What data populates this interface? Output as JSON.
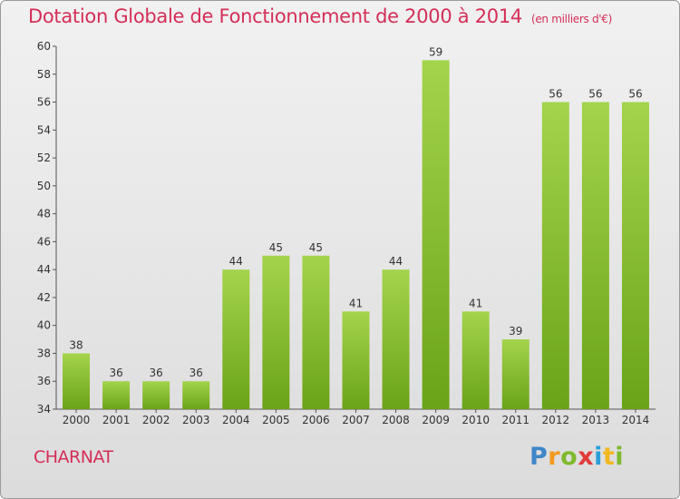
{
  "title": "Dotation Globale de Fonctionnement de 2000 à 2014",
  "subtitle": "(en milliers d'€)",
  "commune": "CHARNAT",
  "logo": {
    "letters": [
      "P",
      "r",
      "o",
      "x",
      "i",
      "t",
      "i"
    ],
    "colors": [
      "#3f86c8",
      "#f29a1f",
      "#7fba2e",
      "#e23b3b",
      "#2a9ed8",
      "#f2b81f",
      "#7fba2e"
    ]
  },
  "colors": {
    "title": "#d42e57",
    "bar_light": "#a3d44c",
    "bar_dark": "#6aa318"
  },
  "chart_data": {
    "type": "bar",
    "title": "Dotation Globale de Fonctionnement de 2000 à 2014",
    "subtitle": "(en milliers d'€)",
    "categories": [
      "2000",
      "2001",
      "2002",
      "2003",
      "2004",
      "2005",
      "2006",
      "2007",
      "2008",
      "2009",
      "2010",
      "2011",
      "2012",
      "2013",
      "2014"
    ],
    "values": [
      38,
      36,
      36,
      36,
      44,
      45,
      45,
      41,
      44,
      59,
      41,
      39,
      56,
      56,
      56
    ],
    "xlabel": "",
    "ylabel": "",
    "ylim": [
      34,
      60
    ],
    "yticks": [
      34,
      36,
      38,
      40,
      42,
      44,
      46,
      48,
      50,
      52,
      54,
      56,
      58,
      60
    ],
    "grid": false,
    "legend": "none"
  }
}
